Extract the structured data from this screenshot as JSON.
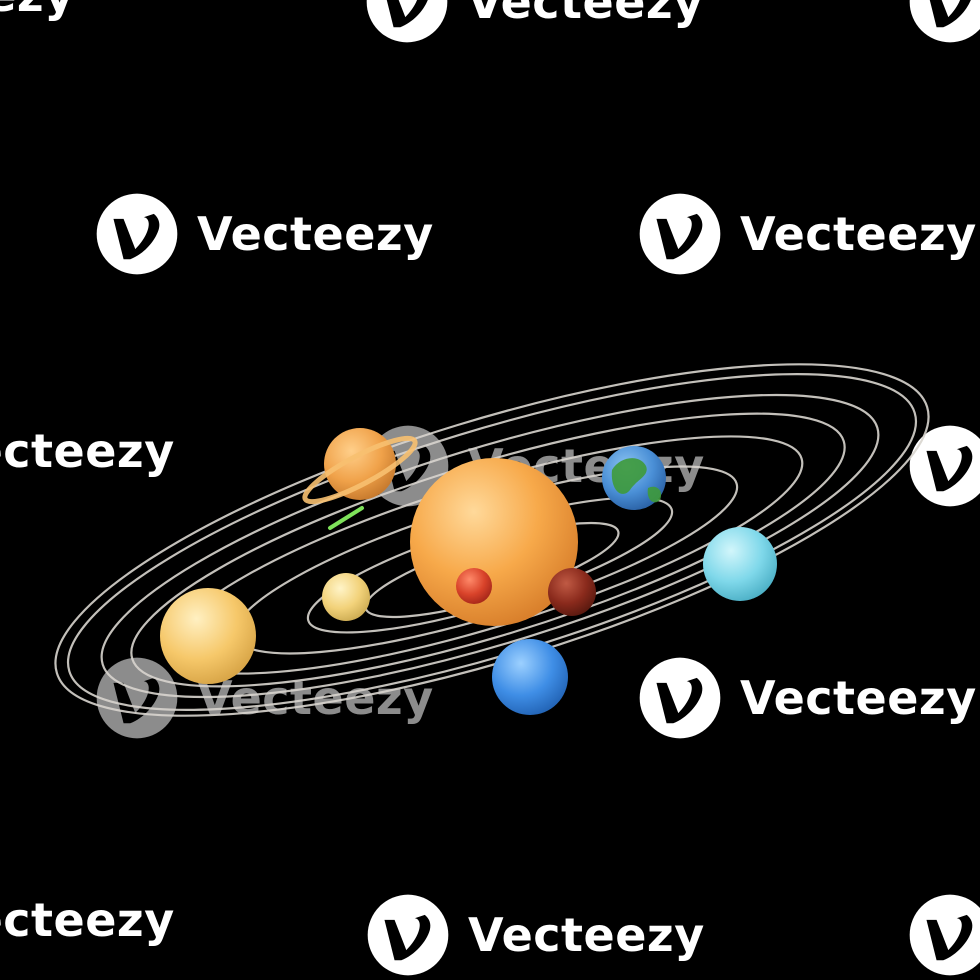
{
  "watermark": {
    "brand": "Vecteezy",
    "logo_icon": "vecteezy-v-logo-icon"
  },
  "scene": {
    "background": "#000000",
    "orbit_color": "#d9d5cf",
    "sun_color": "#f7a94a",
    "planets": {
      "mercury_color": "#d9432a",
      "venus_color": "#f2d27a",
      "earth_color": "#4a8fd6",
      "mars_color": "#8a2a1c",
      "jupiter_color": "#f6c86a",
      "saturn_color": "#f0a24a",
      "uranus_color": "#7fd8ea",
      "neptune_color": "#3f8ee6"
    }
  }
}
